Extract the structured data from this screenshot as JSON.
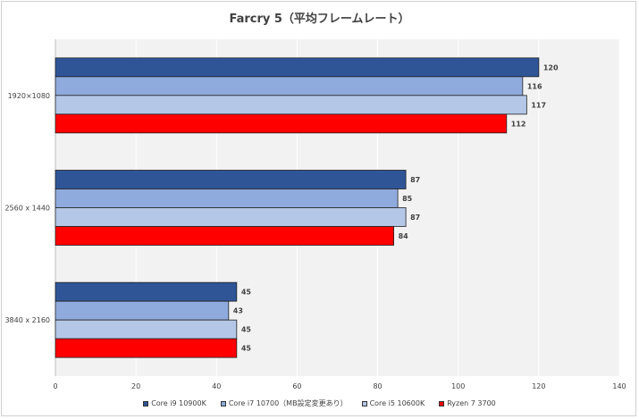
{
  "chart_data": {
    "type": "bar",
    "orientation": "horizontal",
    "title": "Farcry 5（平均フレームレート）",
    "categories": [
      "1920×1080",
      "2560 x 1440",
      "3840 x 2160"
    ],
    "series": [
      {
        "name": "Core i9 10900K",
        "color": "#2f5597",
        "values": [
          120,
          87,
          45
        ]
      },
      {
        "name": "Core i7 10700（MB設定変更あり）",
        "color": "#8faadc",
        "values": [
          116,
          85,
          43
        ]
      },
      {
        "name": "Core i5 10600K",
        "color": "#b4c7e7",
        "values": [
          117,
          87,
          45
        ]
      },
      {
        "name": "Ryzen 7 3700",
        "color": "#ff0000",
        "values": [
          112,
          84,
          45
        ]
      }
    ],
    "xlim": [
      0,
      140
    ],
    "xticks": [
      0,
      20,
      40,
      60,
      80,
      100,
      120,
      140
    ],
    "xlabel": "",
    "ylabel": "",
    "grid": true,
    "legend_position": "bottom"
  }
}
